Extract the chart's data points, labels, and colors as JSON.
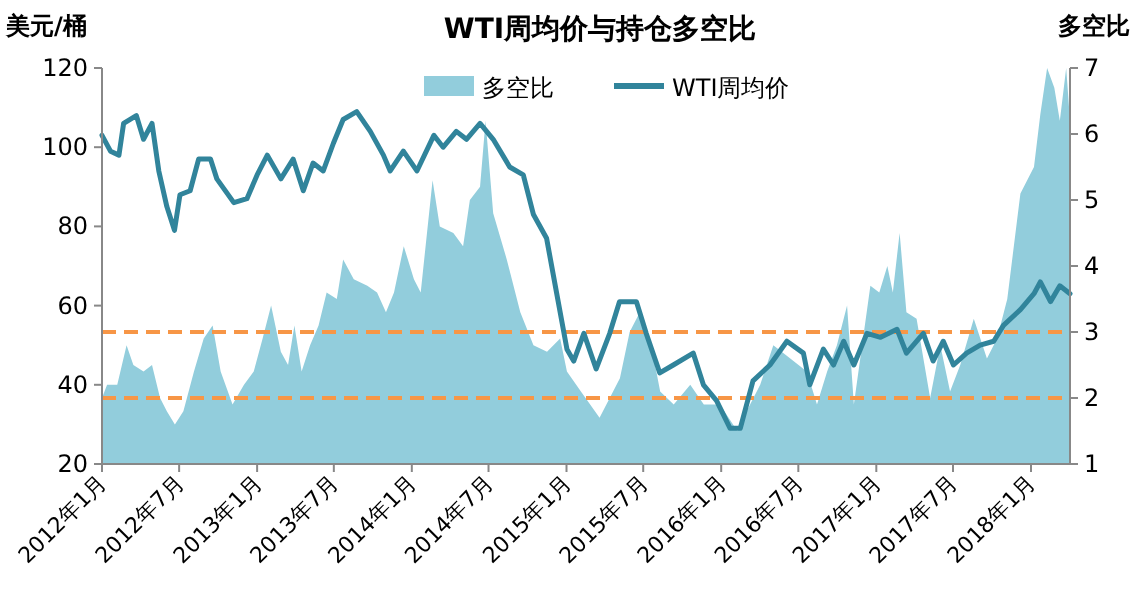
{
  "chart_data": {
    "type": "line",
    "title": "WTI周均价与持仓多空比",
    "ylabel": "美元/桶",
    "y2label": "多空比",
    "xlim": [
      "2012-01-01",
      "2018-04-03"
    ],
    "xticks": [
      {
        "value": "2012-01-01",
        "label": "2012年1月"
      },
      {
        "value": "2012-07-01",
        "label": "2012年7月"
      },
      {
        "value": "2013-01-01",
        "label": "2013年1月"
      },
      {
        "value": "2013-07-01",
        "label": "2013年7月"
      },
      {
        "value": "2014-01-01",
        "label": "2014年1月"
      },
      {
        "value": "2014-07-01",
        "label": "2014年7月"
      },
      {
        "value": "2015-01-01",
        "label": "2015年1月"
      },
      {
        "value": "2015-07-01",
        "label": "2015年7月"
      },
      {
        "value": "2016-01-01",
        "label": "2016年1月"
      },
      {
        "value": "2016-07-01",
        "label": "2016年7月"
      },
      {
        "value": "2017-01-01",
        "label": "2017年1月"
      },
      {
        "value": "2017-07-01",
        "label": "2017年7月"
      },
      {
        "value": "2018-01-01",
        "label": "2018年1月"
      }
    ],
    "ylim": [
      20,
      120
    ],
    "yticks": [
      20,
      40,
      60,
      80,
      100,
      120
    ],
    "y2lim": [
      1,
      7
    ],
    "y2ticks": [
      1,
      2,
      3,
      4,
      5,
      6,
      7
    ],
    "grid": false,
    "legend": "top",
    "ref_lines": [
      {
        "axis": "y2",
        "value": 3,
        "color": "#f79646",
        "line_style": "dashed"
      },
      {
        "axis": "y2",
        "value": 2,
        "color": "#f79646",
        "line_style": "dashed"
      }
    ],
    "series": [
      {
        "name": "多空比",
        "type": "area",
        "axis": "y2",
        "color": "#92cddc",
        "x": [
          "2012-01-01",
          "2012-01-13",
          "2012-02-06",
          "2012-02-28",
          "2012-03-15",
          "2012-04-08",
          "2012-04-28",
          "2012-05-17",
          "2012-06-02",
          "2012-06-21",
          "2012-07-11",
          "2012-08-05",
          "2012-08-28",
          "2012-09-18",
          "2012-10-07",
          "2012-11-04",
          "2012-12-01",
          "2012-12-24",
          "2013-01-14",
          "2013-02-03",
          "2013-02-26",
          "2013-03-15",
          "2013-03-30",
          "2013-04-16",
          "2013-05-06",
          "2013-05-26",
          "2013-06-14",
          "2013-07-08",
          "2013-07-23",
          "2013-08-17",
          "2013-09-18",
          "2013-10-11",
          "2013-11-01",
          "2013-11-20",
          "2013-12-13",
          "2014-01-06",
          "2014-01-22",
          "2014-02-19",
          "2014-03-08",
          "2014-04-09",
          "2014-05-02",
          "2014-05-18",
          "2014-06-11",
          "2014-06-24",
          "2014-07-12",
          "2014-08-13",
          "2014-09-14",
          "2014-10-15",
          "2014-11-16",
          "2014-12-17",
          "2015-01-02",
          "2015-02-04",
          "2015-03-20",
          "2015-05-07",
          "2015-05-30",
          "2015-06-23",
          "2015-07-17",
          "2015-08-10",
          "2015-09-11",
          "2015-10-20",
          "2015-11-21",
          "2015-12-29",
          "2016-02-08",
          "2016-03-01",
          "2016-04-02",
          "2016-05-03",
          "2016-06-12",
          "2016-07-21",
          "2016-08-14",
          "2016-09-07",
          "2016-09-30",
          "2016-10-24",
          "2016-11-09",
          "2016-12-18",
          "2017-01-08",
          "2017-01-27",
          "2017-02-09",
          "2017-02-25",
          "2017-03-13",
          "2017-04-06",
          "2017-05-08",
          "2017-06-01",
          "2017-06-24",
          "2017-07-18",
          "2017-08-19",
          "2017-09-19",
          "2017-10-13",
          "2017-11-06",
          "2017-12-07",
          "2018-01-08",
          "2018-01-23",
          "2018-02-08",
          "2018-02-25",
          "2018-03-10",
          "2018-03-25",
          "2018-04-03"
        ],
        "values": [
          2.0,
          2.2,
          2.2,
          2.8,
          2.5,
          2.4,
          2.5,
          2.0,
          1.8,
          1.6,
          1.8,
          2.4,
          2.9,
          3.1,
          2.4,
          1.9,
          2.2,
          2.4,
          2.9,
          3.4,
          2.7,
          2.5,
          3.1,
          2.4,
          2.8,
          3.1,
          3.6,
          3.5,
          4.1,
          3.8,
          3.7,
          3.6,
          3.3,
          3.6,
          4.3,
          3.8,
          3.6,
          5.3,
          4.6,
          4.5,
          4.3,
          5.0,
          5.2,
          6.2,
          4.8,
          4.1,
          3.3,
          2.8,
          2.7,
          2.9,
          2.4,
          2.1,
          1.7,
          2.3,
          3.0,
          3.3,
          2.9,
          2.1,
          1.9,
          2.2,
          1.9,
          1.9,
          1.5,
          1.8,
          2.2,
          2.8,
          2.6,
          2.4,
          1.9,
          2.4,
          2.8,
          3.4,
          1.9,
          3.7,
          3.6,
          4.0,
          3.6,
          4.5,
          3.3,
          3.2,
          2.0,
          2.8,
          2.1,
          2.5,
          3.2,
          2.6,
          2.9,
          3.5,
          5.1,
          5.5,
          6.3,
          7.0,
          6.7,
          6.2,
          7.0,
          6.2
        ]
      },
      {
        "name": "WTI周均价",
        "axis": "y",
        "color": "#31849b",
        "x": [
          "2012-01-01",
          "2012-01-21",
          "2012-02-10",
          "2012-02-21",
          "2012-03-22",
          "2012-04-08",
          "2012-04-28",
          "2012-05-14",
          "2012-06-02",
          "2012-06-20",
          "2012-07-03",
          "2012-07-27",
          "2012-08-16",
          "2012-09-13",
          "2012-09-28",
          "2012-11-07",
          "2012-12-08",
          "2013-01-01",
          "2013-01-25",
          "2013-02-26",
          "2013-03-27",
          "2013-04-20",
          "2013-05-13",
          "2013-06-06",
          "2013-06-30",
          "2013-07-23",
          "2013-08-24",
          "2013-09-25",
          "2013-10-26",
          "2013-11-11",
          "2013-12-12",
          "2014-01-13",
          "2014-02-22",
          "2014-03-16",
          "2014-04-16",
          "2014-05-10",
          "2014-06-11",
          "2014-07-12",
          "2014-08-20",
          "2014-09-21",
          "2014-10-15",
          "2014-11-15",
          "2014-12-09",
          "2015-01-02",
          "2015-01-18",
          "2015-02-11",
          "2015-03-12",
          "2015-04-13",
          "2015-05-06",
          "2015-06-15",
          "2015-07-08",
          "2015-08-09",
          "2015-09-10",
          "2015-10-27",
          "2015-11-20",
          "2015-12-21",
          "2016-01-22",
          "2016-02-15",
          "2016-03-16",
          "2016-04-25",
          "2016-06-04",
          "2016-07-13",
          "2016-07-28",
          "2016-08-29",
          "2016-09-22",
          "2016-10-16",
          "2016-11-09",
          "2016-12-10",
          "2017-01-11",
          "2017-02-19",
          "2017-03-13",
          "2017-04-22",
          "2017-05-15",
          "2017-06-08",
          "2017-07-02",
          "2017-08-02",
          "2017-09-03",
          "2017-10-05",
          "2017-10-28",
          "2017-12-07",
          "2018-01-08",
          "2018-01-23",
          "2018-02-16",
          "2018-03-10",
          "2018-04-03"
        ],
        "values": [
          103,
          99,
          98,
          106,
          108,
          102,
          106,
          94,
          85,
          79,
          88,
          89,
          97,
          97,
          92,
          86,
          87,
          93,
          98,
          92,
          97,
          89,
          96,
          94,
          101,
          107,
          109,
          104,
          98,
          94,
          99,
          94,
          103,
          100,
          104,
          102,
          106,
          102,
          95,
          93,
          83,
          77,
          63,
          49,
          46,
          53,
          44,
          53,
          61,
          61,
          53,
          43,
          45,
          48,
          40,
          36,
          29,
          29,
          41,
          45,
          51,
          48,
          40,
          49,
          45,
          51,
          45,
          53,
          52,
          54,
          48,
          53,
          46,
          51,
          45,
          48,
          50,
          51,
          55,
          59,
          63,
          66,
          61,
          65,
          63
        ]
      }
    ]
  }
}
